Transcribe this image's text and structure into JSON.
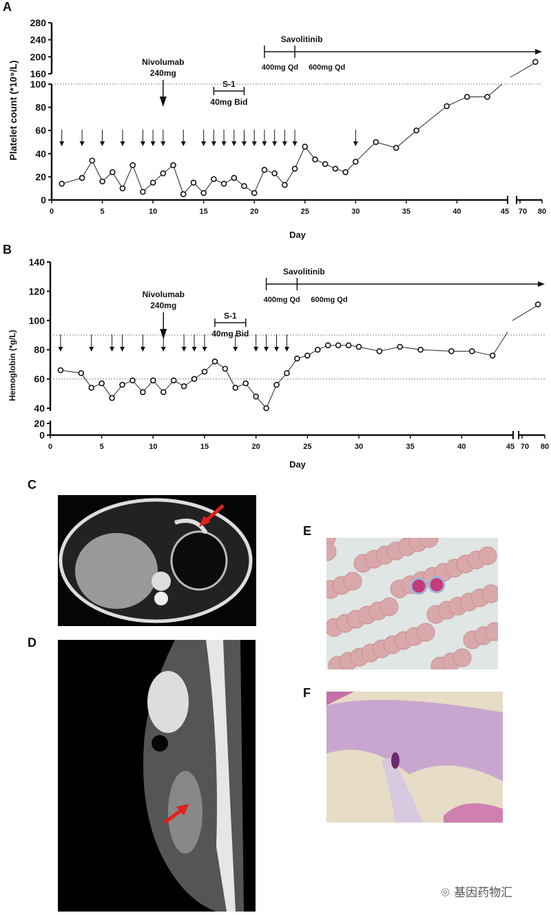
{
  "panels": {
    "a": "A",
    "b": "B",
    "c": "C",
    "d": "D",
    "e": "E",
    "f": "F"
  },
  "watermark": "基因药物汇",
  "chart_data": [
    {
      "type": "line",
      "panel": "A",
      "ylabel": "Platelet count (*10⁹/L)",
      "xlabel": "Day",
      "x_ticks": [
        "0",
        "5",
        "10",
        "15",
        "20",
        "25",
        "30",
        "35",
        "40",
        "45",
        "70",
        "80"
      ],
      "y_ticks_lower": [
        "0",
        "20",
        "40",
        "60",
        "80",
        "100"
      ],
      "y_ticks_upper": [
        "160",
        "200",
        "240",
        "280"
      ],
      "ylim_lower": [
        0,
        100
      ],
      "ylim_upper": [
        160,
        280
      ],
      "xlim": [
        0,
        45
      ],
      "xlim_break": [
        70,
        80
      ],
      "reference_lines": [
        100
      ],
      "x": [
        1,
        3,
        4,
        5,
        6,
        7,
        8,
        9,
        10,
        11,
        12,
        13,
        14,
        15,
        16,
        17,
        18,
        19,
        20,
        21,
        22,
        23,
        24,
        25,
        26,
        27,
        28,
        29,
        30,
        32,
        34,
        36,
        39,
        41,
        43,
        77
      ],
      "values": [
        14,
        19,
        34,
        16,
        24,
        10,
        30,
        7,
        15,
        23,
        30,
        5,
        15,
        6,
        18,
        14,
        19,
        12,
        6,
        26,
        23,
        13,
        27,
        46,
        35,
        31,
        27,
        24,
        33,
        50,
        45,
        60,
        81,
        89,
        89,
        188
      ],
      "transfusion_arrow_days": [
        1,
        3,
        5,
        7,
        9,
        10,
        11,
        13,
        15,
        16,
        17,
        18,
        19,
        20,
        21,
        22,
        23,
        24,
        30
      ],
      "annotations": {
        "nivolumab": {
          "name": "Nivolumab",
          "dose": "240mg",
          "day": 11
        },
        "s1": {
          "name": "S-1",
          "dose": "40mg Bid",
          "start": 16,
          "end": 19
        },
        "savolitinib": {
          "name": "Savolitinib",
          "dose1": "400mg Qd",
          "dose2": "600mg Qd",
          "start": 21,
          "switch": 24
        }
      }
    },
    {
      "type": "line",
      "panel": "B",
      "ylabel": "Hemoglobin (*g/L)",
      "xlabel": "Day",
      "x_ticks": [
        "0",
        "5",
        "10",
        "15",
        "20",
        "25",
        "30",
        "35",
        "40",
        "45",
        "70",
        "80"
      ],
      "y_ticks_lower": [
        "0",
        "20"
      ],
      "y_ticks_upper": [
        "40",
        "60",
        "80",
        "100",
        "120",
        "140"
      ],
      "ylim_lower": [
        0,
        20
      ],
      "ylim_upper": [
        40,
        140
      ],
      "xlim": [
        0,
        45
      ],
      "xlim_break": [
        70,
        80
      ],
      "reference_lines": [
        90,
        60
      ],
      "x": [
        1,
        3,
        4,
        5,
        6,
        7,
        8,
        9,
        10,
        11,
        12,
        13,
        14,
        15,
        16,
        17,
        18,
        19,
        20,
        21,
        22,
        23,
        24,
        25,
        26,
        27,
        28,
        29,
        30,
        32,
        34,
        36,
        39,
        41,
        43,
        77
      ],
      "values": [
        66,
        64,
        54,
        57,
        47,
        56,
        59,
        51,
        59,
        51,
        59,
        55,
        60,
        65,
        72,
        67,
        54,
        57,
        48,
        40,
        56,
        64,
        74,
        76,
        80,
        83,
        83,
        83,
        82,
        79,
        82,
        80,
        79,
        79,
        76,
        111
      ],
      "transfusion_arrow_days": [
        1,
        4,
        6,
        7,
        9,
        11,
        13,
        14,
        15,
        18,
        20,
        21,
        22,
        23
      ],
      "annotations": {
        "nivolumab": {
          "name": "Nivolumab",
          "dose": "240mg",
          "day": 11
        },
        "s1": {
          "name": "S-1",
          "dose": "40mg Bid",
          "start": 16,
          "end": 19
        },
        "savolitinib": {
          "name": "Savolitinib",
          "dose1": "400mg Qd",
          "dose2": "600mg Qd",
          "start": 21,
          "switch": 24
        }
      }
    }
  ]
}
